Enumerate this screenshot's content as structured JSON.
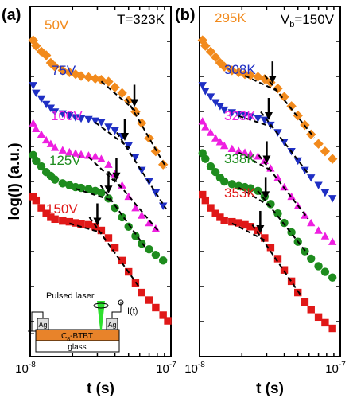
{
  "chart_data": [
    {
      "type": "scatter",
      "panel_label": "(a)",
      "condition_label": "T=323K",
      "xlabel": "t (s)",
      "ylabel": "log(I) (a.u.)",
      "x_scale": "log",
      "xlim": [
        1e-08,
        1e-07
      ],
      "x_tick_labels": [
        "10-8",
        "10-7"
      ],
      "x_tick_label_parts": [
        {
          "base": "10",
          "exp": "-8"
        },
        {
          "base": "10",
          "exp": "-7"
        }
      ],
      "y_ticks_labeled": false,
      "series": [
        {
          "name": "50V",
          "color": "#f28a1c",
          "marker": "diamond",
          "x": [
            1.05e-08,
            1.1e-08,
            1.2e-08,
            1.3e-08,
            1.4e-08,
            1.5e-08,
            1.7e-08,
            1.9e-08,
            2.1e-08,
            2.3e-08,
            2.6e-08,
            2.9e-08,
            3.2e-08,
            3.6e-08,
            4e-08,
            4.5e-08,
            5e-08,
            5.6e-08,
            6.2e-08,
            7e-08,
            7.8e-08,
            8.8e-08
          ],
          "y": [
            9.9,
            9.75,
            9.6,
            9.5,
            9.3,
            9.2,
            9.1,
            9.05,
            9.0,
            8.95,
            8.92,
            8.88,
            8.85,
            8.8,
            8.65,
            8.5,
            8.3,
            8.0,
            7.7,
            7.3,
            6.95,
            6.6
          ]
        },
        {
          "name": "75V",
          "color": "#1f2fc4",
          "marker": "triangle-down",
          "x": [
            1.05e-08,
            1.1e-08,
            1.2e-08,
            1.3e-08,
            1.4e-08,
            1.5e-08,
            1.7e-08,
            1.9e-08,
            2.1e-08,
            2.3e-08,
            2.6e-08,
            2.9e-08,
            3.2e-08,
            3.6e-08,
            4e-08,
            4.5e-08,
            5e-08,
            5.6e-08,
            6.2e-08,
            7e-08,
            7.8e-08,
            8.8e-08
          ],
          "y": [
            8.7,
            8.5,
            8.35,
            8.2,
            8.1,
            8.0,
            7.95,
            7.9,
            7.85,
            7.82,
            7.8,
            7.76,
            7.72,
            7.6,
            7.5,
            7.35,
            7.1,
            6.8,
            6.45,
            6.15,
            5.85,
            5.5
          ]
        },
        {
          "name": "100V",
          "color": "#ee1fe0",
          "marker": "triangle-up",
          "x": [
            1.05e-08,
            1.1e-08,
            1.2e-08,
            1.3e-08,
            1.4e-08,
            1.5e-08,
            1.7e-08,
            1.9e-08,
            2.1e-08,
            2.3e-08,
            2.6e-08,
            2.9e-08,
            3.2e-08,
            3.6e-08,
            4e-08,
            4.5e-08,
            5e-08,
            5.6e-08,
            6.2e-08,
            7e-08,
            7.8e-08
          ],
          "y": [
            7.7,
            7.55,
            7.4,
            7.25,
            7.15,
            7.05,
            6.98,
            6.93,
            6.9,
            6.87,
            6.84,
            6.82,
            6.75,
            6.6,
            6.35,
            6.05,
            5.75,
            5.45,
            5.25,
            5.05,
            4.9
          ]
        },
        {
          "name": "125V",
          "color": "#1e8c1e",
          "marker": "circle",
          "x": [
            1.05e-08,
            1.1e-08,
            1.2e-08,
            1.3e-08,
            1.4e-08,
            1.5e-08,
            1.7e-08,
            1.9e-08,
            2.1e-08,
            2.3e-08,
            2.6e-08,
            2.9e-08,
            3.2e-08,
            3.6e-08,
            4e-08,
            4.5e-08,
            5e-08,
            5.6e-08,
            6.2e-08,
            7e-08,
            7.8e-08,
            8.8e-08
          ],
          "y": [
            6.85,
            6.7,
            6.55,
            6.4,
            6.3,
            6.2,
            6.1,
            6.05,
            6.0,
            5.98,
            5.95,
            5.9,
            5.85,
            5.7,
            5.45,
            5.2,
            4.95,
            4.7,
            4.5,
            4.35,
            4.2,
            4.05
          ]
        },
        {
          "name": "150V",
          "color": "#e01818",
          "marker": "square",
          "x": [
            1.05e-08,
            1.1e-08,
            1.2e-08,
            1.3e-08,
            1.4e-08,
            1.5e-08,
            1.7e-08,
            1.9e-08,
            2.1e-08,
            2.3e-08,
            2.6e-08,
            2.9e-08,
            3.2e-08,
            3.6e-08,
            4e-08,
            4.5e-08,
            5e-08,
            5.6e-08,
            6.2e-08,
            7e-08,
            7.8e-08,
            8.8e-08,
            9.5e-08
          ],
          "y": [
            5.75,
            5.65,
            5.45,
            5.3,
            5.2,
            5.15,
            5.1,
            5.08,
            5.05,
            5.02,
            5.0,
            4.95,
            4.85,
            4.65,
            4.4,
            4.05,
            3.75,
            3.45,
            3.2,
            3.0,
            2.8,
            2.6,
            2.45
          ]
        }
      ],
      "arrow_x": [
        5.5e-08,
        4.7e-08,
        4.1e-08,
        3.6e-08,
        3e-08
      ],
      "inset": {
        "laser_label": "Pulsed laser",
        "current_label": "I(t)",
        "electrode_label": "Ag",
        "film_label_parts": {
          "base": "C",
          "sub": "8",
          "rest": "-BTBT"
        },
        "substrate_label": "glass"
      }
    },
    {
      "type": "scatter",
      "panel_label": "(b)",
      "condition_label_parts": {
        "base": "V",
        "sub": "b",
        "rest": "=150V"
      },
      "xlabel": "t (s)",
      "x_scale": "log",
      "xlim": [
        1e-08,
        1e-07
      ],
      "x_tick_labels": [
        "10-8",
        "10-7"
      ],
      "x_tick_label_parts": [
        {
          "base": "10",
          "exp": "-8"
        },
        {
          "base": "10",
          "exp": "-7"
        }
      ],
      "y_ticks_labeled": false,
      "series": [
        {
          "name": "295K",
          "color": "#f28a1c",
          "marker": "diamond",
          "x": [
            1.05e-08,
            1.1e-08,
            1.2e-08,
            1.3e-08,
            1.4e-08,
            1.5e-08,
            1.7e-08,
            1.9e-08,
            2.1e-08,
            2.3e-08,
            2.6e-08,
            2.9e-08,
            3.2e-08,
            3.6e-08,
            4e-08,
            4.5e-08,
            5e-08,
            5.6e-08,
            6.2e-08,
            7e-08,
            7.8e-08,
            8.8e-08
          ],
          "y": [
            9.9,
            9.75,
            9.6,
            9.45,
            9.3,
            9.2,
            9.1,
            9.05,
            9.0,
            8.97,
            8.93,
            8.87,
            8.78,
            8.62,
            8.4,
            8.15,
            7.9,
            7.65,
            7.4,
            7.15,
            6.95,
            6.75
          ]
        },
        {
          "name": "308K",
          "color": "#1f2fc4",
          "marker": "triangle-down",
          "x": [
            1.05e-08,
            1.1e-08,
            1.2e-08,
            1.3e-08,
            1.4e-08,
            1.5e-08,
            1.7e-08,
            1.9e-08,
            2.1e-08,
            2.3e-08,
            2.6e-08,
            2.9e-08,
            3.2e-08,
            3.6e-08,
            4e-08,
            4.5e-08,
            5e-08,
            5.6e-08,
            6.2e-08,
            7e-08,
            7.8e-08,
            8.8e-08
          ],
          "y": [
            8.7,
            8.55,
            8.4,
            8.25,
            8.15,
            8.05,
            7.98,
            7.93,
            7.9,
            7.87,
            7.83,
            7.78,
            7.65,
            7.45,
            7.2,
            6.95,
            6.7,
            6.45,
            6.25,
            6.05,
            5.85,
            5.7
          ]
        },
        {
          "name": "323K",
          "color": "#ee1fe0",
          "marker": "triangle-up",
          "x": [
            1.05e-08,
            1.1e-08,
            1.2e-08,
            1.3e-08,
            1.4e-08,
            1.5e-08,
            1.7e-08,
            1.9e-08,
            2.1e-08,
            2.3e-08,
            2.6e-08,
            2.9e-08,
            3.2e-08,
            3.6e-08,
            4e-08,
            4.5e-08,
            5e-08,
            5.6e-08,
            6.2e-08,
            7e-08,
            7.8e-08,
            8.8e-08
          ],
          "y": [
            7.75,
            7.6,
            7.45,
            7.3,
            7.2,
            7.1,
            7.02,
            6.96,
            6.92,
            6.88,
            6.82,
            6.7,
            6.5,
            6.25,
            6.0,
            5.75,
            5.5,
            5.25,
            5.05,
            4.85,
            4.7,
            4.55
          ]
        },
        {
          "name": "338K",
          "color": "#1e8c1e",
          "marker": "circle",
          "x": [
            1.05e-08,
            1.1e-08,
            1.2e-08,
            1.3e-08,
            1.4e-08,
            1.5e-08,
            1.7e-08,
            1.9e-08,
            2.1e-08,
            2.3e-08,
            2.6e-08,
            2.9e-08,
            3.2e-08,
            3.6e-08,
            4e-08,
            4.5e-08,
            5e-08,
            5.6e-08,
            6.2e-08,
            7e-08,
            7.8e-08,
            8.8e-08
          ],
          "y": [
            6.9,
            6.75,
            6.55,
            6.4,
            6.25,
            6.15,
            6.08,
            6.03,
            6.0,
            5.97,
            5.9,
            5.75,
            5.55,
            5.3,
            5.05,
            4.8,
            4.55,
            4.3,
            4.1,
            3.9,
            3.75,
            3.6
          ]
        },
        {
          "name": "353K",
          "color": "#e01818",
          "marker": "square",
          "x": [
            1.05e-08,
            1.1e-08,
            1.2e-08,
            1.3e-08,
            1.4e-08,
            1.5e-08,
            1.7e-08,
            1.9e-08,
            2.1e-08,
            2.3e-08,
            2.6e-08,
            2.9e-08,
            3.2e-08,
            3.6e-08,
            4e-08,
            4.5e-08,
            5e-08,
            5.6e-08,
            6.2e-08,
            7e-08,
            7.8e-08,
            8.8e-08
          ],
          "y": [
            5.8,
            5.65,
            5.45,
            5.3,
            5.2,
            5.12,
            5.08,
            5.05,
            5.0,
            4.95,
            4.85,
            4.65,
            4.4,
            4.1,
            3.8,
            3.5,
            3.2,
            2.95,
            2.75,
            2.55,
            2.4,
            2.25
          ]
        }
      ],
      "arrow_x": [
        3.3e-08,
        3.1e-08,
        3e-08,
        2.95e-08,
        2.7e-08
      ]
    }
  ]
}
